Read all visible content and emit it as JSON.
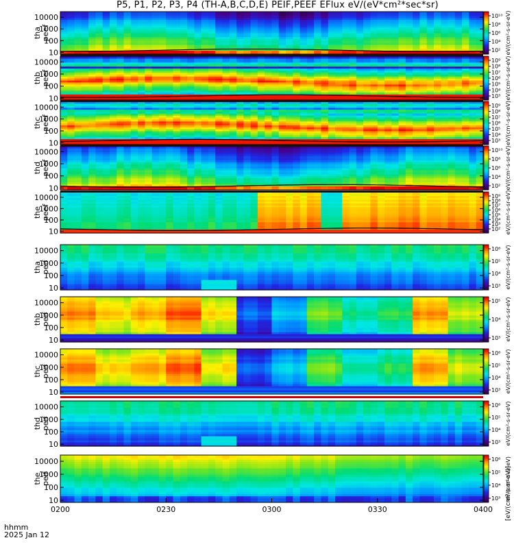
{
  "title": "P5, P1, P2, P3, P4 (TH-A,B,C,D,E) PEIF,PEEF EFlux eV/(eV*cm²*sec*sr)",
  "footer": {
    "hhmm": "hhmm",
    "date": "2025 Jan 12"
  },
  "colorbar_unit_label": "[eV/(cm²-s-sr-eV)]",
  "colorbar_repeat_label": "eV/(cm²-s-sr-eV)",
  "chart_data": {
    "type": "heatmap",
    "x_ticks": [
      "0200",
      "0230",
      "0300",
      "0330",
      "0400"
    ],
    "xlim": [
      "0200",
      "0400"
    ],
    "y_scale": "log",
    "y_ticks": [
      "10",
      "100",
      "1000",
      "10000"
    ],
    "ylim": [
      7,
      30000
    ],
    "panels": [
      {
        "label_top": "tha",
        "label_bottom": "peef",
        "cbar_ticks": [
          "10¹⁰",
          "10⁸",
          "10⁶",
          "10⁴",
          "10²"
        ],
        "pattern": "electron_quiet",
        "seed": 11,
        "potential_line": true,
        "red_band": false
      },
      {
        "label_top": "thb",
        "label_bottom": "peef",
        "cbar_ticks": [
          "10⁹",
          "10⁸",
          "10⁷",
          "10⁶",
          "10⁵",
          "10⁴",
          "10³"
        ],
        "pattern": "electron_hot",
        "seed": 23,
        "potential_line": true,
        "red_band": true
      },
      {
        "label_top": "thc",
        "label_bottom": "peef",
        "cbar_ticks": [
          "10⁹",
          "10⁸",
          "10⁷",
          "10⁶",
          "10⁵",
          "10⁴",
          "10³"
        ],
        "pattern": "electron_hot",
        "seed": 37,
        "potential_line": true,
        "red_band": true
      },
      {
        "label_top": "thd",
        "label_bottom": "peef",
        "cbar_ticks": [
          "10¹⁰",
          "10⁸",
          "10⁶",
          "10⁴",
          "10²"
        ],
        "pattern": "electron_quiet",
        "seed": 41,
        "potential_line": true,
        "red_band": false
      },
      {
        "label_top": "the",
        "label_bottom": "peef",
        "cbar_ticks": [
          "10⁹",
          "10⁸",
          "10⁷",
          "10⁶",
          "10⁵",
          "10⁴",
          "10³",
          "10²"
        ],
        "pattern": "electron_burst",
        "seed": 53,
        "potential_line": true,
        "red_band": false
      },
      {
        "label_top": "tha",
        "label_bottom": "peif",
        "cbar_ticks": [
          "10⁶",
          "10⁵",
          "10⁴",
          "10³"
        ],
        "pattern": "ion_blue",
        "seed": 61,
        "potential_line": false,
        "red_band": false
      },
      {
        "label_top": "thb",
        "label_bottom": "peif",
        "cbar_ticks": [
          "10⁵",
          "10⁴",
          "10³"
        ],
        "pattern": "ion_blocky",
        "seed": 71,
        "potential_line": false,
        "red_band": false
      },
      {
        "label_top": "thc",
        "label_bottom": "peif",
        "cbar_ticks": [
          "10⁶",
          "10⁵",
          "10⁴",
          "10³"
        ],
        "pattern": "ion_blocky",
        "seed": 83,
        "potential_line": false,
        "red_band": false
      },
      {
        "label_top": "thd",
        "label_bottom": "peif",
        "cbar_ticks": [
          "10⁶",
          "10⁵",
          "10⁴",
          "10³"
        ],
        "pattern": "ion_blue",
        "seed": 97,
        "potential_line": false,
        "red_band": false
      },
      {
        "label_top": "the",
        "label_bottom": "peif",
        "cbar_ticks": [
          "10⁶",
          "10⁵",
          "10⁴",
          "10³"
        ],
        "pattern": "ion_smooth",
        "seed": 101,
        "potential_line": false,
        "red_band": false
      }
    ]
  }
}
